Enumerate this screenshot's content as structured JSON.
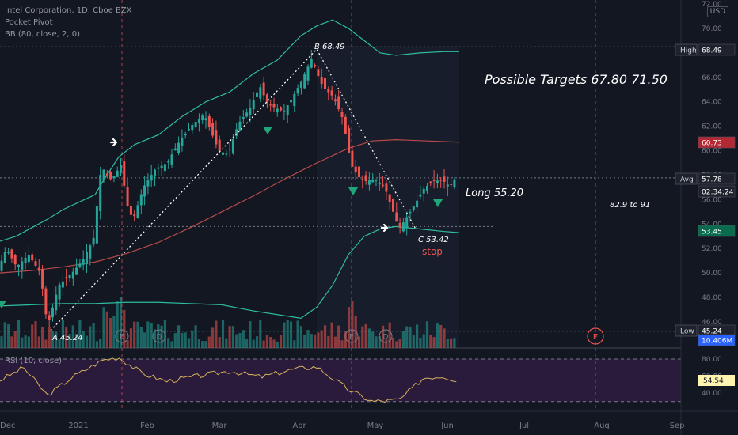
{
  "header": {
    "title": "Intel Corporation, 1D, Cboe BZX",
    "indicator1": "Pocket Pivot",
    "indicator2": "BB (80, close, 2, 0)",
    "currency": "USD"
  },
  "colors": {
    "background": "#131722",
    "up": "#26a69a",
    "down": "#ef5350",
    "bb_band": "#2ebd9f",
    "bb_basis": "#b84a4a",
    "rsi_line": "#d6b15a",
    "rsi_band": "#2a1b3d",
    "pivot_marker": "#1fa77a",
    "stop_text": "#ef5350"
  },
  "chart_data": [
    {
      "type": "candlestick",
      "title": "Intel Corporation, 1D, Cboe BZX",
      "ylim": [
        44.0,
        72.0
      ],
      "y_ticks": [
        46.0,
        48.0,
        50.0,
        52.0,
        54.0,
        56.0,
        58.0,
        60.0,
        62.0,
        64.0,
        66.0,
        68.0,
        70.0,
        72.0
      ],
      "x_ticks": [
        "Dec",
        "2021",
        "Feb",
        "Mar",
        "Apr",
        "May",
        "Jun",
        "Jul",
        "Aug",
        "Sep"
      ],
      "series": [
        {
          "name": "Upper Band",
          "points": [
            [
              0,
              52.6
            ],
            [
              20,
              53
            ],
            [
              40,
              53.7
            ],
            [
              60,
              54.4
            ],
            [
              80,
              55.2
            ],
            [
              100,
              55.8
            ],
            [
              120,
              56.4
            ],
            [
              130,
              57.5
            ],
            [
              150,
              59.5
            ],
            [
              170,
              60.5
            ],
            [
              200,
              61.3
            ],
            [
              230,
              62.8
            ],
            [
              260,
              64
            ],
            [
              290,
              64.8
            ],
            [
              320,
              66.3
            ],
            [
              350,
              67.4
            ],
            [
              380,
              69.4
            ],
            [
              400,
              70.2
            ],
            [
              420,
              70.7
            ],
            [
              440,
              70
            ],
            [
              460,
              69
            ],
            [
              480,
              68
            ],
            [
              500,
              67.8
            ],
            [
              530,
              68
            ],
            [
              560,
              68.1
            ],
            [
              580,
              68.1
            ]
          ]
        },
        {
          "name": "Basis",
          "points": [
            [
              0,
              50
            ],
            [
              40,
              50.2
            ],
            [
              80,
              50.5
            ],
            [
              120,
              50.9
            ],
            [
              160,
              51.6
            ],
            [
              200,
              52.5
            ],
            [
              240,
              53.7
            ],
            [
              280,
              55
            ],
            [
              320,
              56.3
            ],
            [
              360,
              57.7
            ],
            [
              400,
              59
            ],
            [
              440,
              60.2
            ],
            [
              470,
              60.8
            ],
            [
              500,
              60.9
            ],
            [
              540,
              60.8
            ],
            [
              580,
              60.7
            ]
          ]
        },
        {
          "name": "Lower Band",
          "points": [
            [
              0,
              47.3
            ],
            [
              40,
              47.4
            ],
            [
              80,
              47.5
            ],
            [
              120,
              47.5
            ],
            [
              160,
              47.6
            ],
            [
              200,
              47.6
            ],
            [
              240,
              47.5
            ],
            [
              280,
              47.4
            ],
            [
              320,
              46.9
            ],
            [
              360,
              46.5
            ],
            [
              380,
              46.3
            ],
            [
              400,
              47.2
            ],
            [
              420,
              49
            ],
            [
              440,
              51.5
            ],
            [
              460,
              53
            ],
            [
              480,
              53.6
            ],
            [
              500,
              53.8
            ],
            [
              530,
              53.6
            ],
            [
              560,
              53.4
            ],
            [
              580,
              53.3
            ]
          ]
        }
      ],
      "horizontal_levels": [
        68.49,
        57.78,
        53.45,
        45.24
      ],
      "price_labels": [
        {
          "text": "High",
          "value": "68.49",
          "color": "#1e222d"
        },
        {
          "text": "",
          "value": "60.73",
          "color": "#b22833"
        },
        {
          "text": "Avg",
          "value": "57.78",
          "color": "#1e222d"
        },
        {
          "text": "",
          "value": "02:34:24",
          "color": "#1e222d"
        },
        {
          "text": "",
          "value": "53.45",
          "color": "#0b6b4e"
        },
        {
          "text": "Low",
          "value": "45.24",
          "color": "#1e222d"
        },
        {
          "text": "",
          "value": "10.406M",
          "color": "#2962ff"
        }
      ],
      "annotations": [
        {
          "text": "A 45.24",
          "x": 64,
          "y": 45.24
        },
        {
          "text": "B 68.49",
          "x": 397,
          "y": 68.49
        },
        {
          "text": "C 53.42",
          "x": 528,
          "y": 53.42
        },
        {
          "text": "stop",
          "x": 532,
          "y": 52.2
        },
        {
          "text": "Possible Targets  67.80  71.50",
          "x": 612,
          "y": 65.6
        },
        {
          "text": "Long 55.20",
          "x": 588,
          "y": 57.0
        },
        {
          "text": "82.9 to 91",
          "x": 770,
          "y": 55.9
        }
      ],
      "event_markers": [
        "E",
        "D",
        "D",
        "E",
        "D",
        "E"
      ]
    },
    {
      "type": "line",
      "title": "RSI (10, close)",
      "ylim": [
        30,
        90
      ],
      "y_ticks": [
        40.0,
        60.0,
        80.0
      ],
      "series": [
        {
          "name": "RSI",
          "last": "54.54"
        }
      ]
    }
  ]
}
